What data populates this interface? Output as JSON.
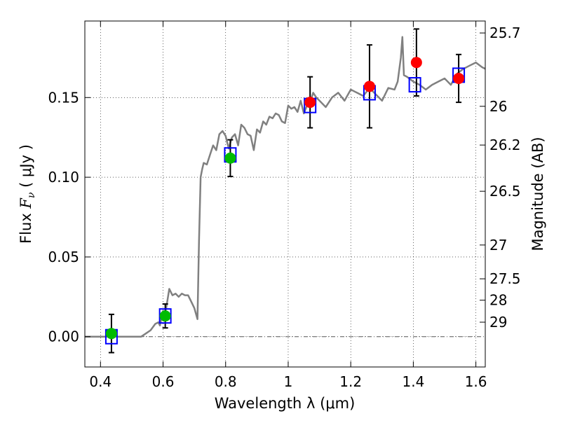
{
  "chart_data": {
    "type": "scatter",
    "xlabel": "Wavelength  λ (μm)",
    "ylabel_prefix": "Flux  ",
    "ylabel_symbol": "F",
    "ylabel_subscript": "ν",
    "ylabel_suffix": "  ( μJy )",
    "ylabel_right": "Magnitude (AB)",
    "xlim": [
      0.35,
      1.63
    ],
    "ylim": [
      -0.019,
      0.198
    ],
    "grid": true,
    "x_ticks": [
      {
        "value": 0.4,
        "label": "0.4"
      },
      {
        "value": 0.6,
        "label": "0.6"
      },
      {
        "value": 0.8,
        "label": "0.8"
      },
      {
        "value": 1.0,
        "label": "1"
      },
      {
        "value": 1.2,
        "label": "1.2"
      },
      {
        "value": 1.4,
        "label": "1.4"
      },
      {
        "value": 1.6,
        "label": "1.6"
      }
    ],
    "y_ticks": [
      {
        "value": 0.0,
        "label": "0.00"
      },
      {
        "value": 0.05,
        "label": "0.05"
      },
      {
        "value": 0.1,
        "label": "0.10"
      },
      {
        "value": 0.15,
        "label": "0.15"
      }
    ],
    "right_ticks": [
      {
        "flux": 0.1905,
        "label": "25.7"
      },
      {
        "flux": 0.1445,
        "label": "26"
      },
      {
        "flux": 0.1202,
        "label": "26.2"
      },
      {
        "flux": 0.0912,
        "label": "26.5"
      },
      {
        "flux": 0.0575,
        "label": "27"
      },
      {
        "flux": 0.0363,
        "label": "27.5"
      },
      {
        "flux": 0.0229,
        "label": "28"
      },
      {
        "flux": 0.0091,
        "label": "29"
      }
    ],
    "colors": {
      "model_line": "#808080",
      "model_box": "#0000ff",
      "optical": "#00bb00",
      "infrared": "#ff0000",
      "errorbar": "#000000",
      "zero_line": "#555555"
    },
    "model_spectrum": {
      "x": [
        0.35,
        0.53,
        0.545,
        0.56,
        0.575,
        0.585,
        0.59,
        0.6,
        0.605,
        0.61,
        0.62,
        0.63,
        0.64,
        0.65,
        0.66,
        0.67,
        0.68,
        0.69,
        0.7,
        0.71,
        0.715,
        0.72,
        0.725,
        0.73,
        0.74,
        0.75,
        0.76,
        0.77,
        0.78,
        0.79,
        0.8,
        0.81,
        0.82,
        0.83,
        0.84,
        0.85,
        0.86,
        0.87,
        0.88,
        0.89,
        0.9,
        0.91,
        0.92,
        0.93,
        0.94,
        0.95,
        0.96,
        0.97,
        0.98,
        0.99,
        1.0,
        1.01,
        1.02,
        1.03,
        1.04,
        1.05,
        1.06,
        1.07,
        1.08,
        1.09,
        1.1,
        1.12,
        1.14,
        1.16,
        1.18,
        1.2,
        1.22,
        1.24,
        1.26,
        1.28,
        1.3,
        1.32,
        1.34,
        1.35,
        1.36,
        1.365,
        1.37,
        1.38,
        1.4,
        1.42,
        1.44,
        1.46,
        1.48,
        1.5,
        1.52,
        1.54,
        1.56,
        1.58,
        1.6,
        1.62,
        1.63
      ],
      "y": [
        0.0,
        0.0,
        0.002,
        0.004,
        0.008,
        0.009,
        0.007,
        0.016,
        0.014,
        0.018,
        0.03,
        0.026,
        0.027,
        0.025,
        0.027,
        0.026,
        0.026,
        0.022,
        0.018,
        0.011,
        0.06,
        0.1,
        0.105,
        0.109,
        0.108,
        0.114,
        0.12,
        0.117,
        0.127,
        0.129,
        0.126,
        0.118,
        0.125,
        0.127,
        0.12,
        0.133,
        0.131,
        0.127,
        0.126,
        0.117,
        0.13,
        0.128,
        0.135,
        0.133,
        0.138,
        0.137,
        0.14,
        0.139,
        0.135,
        0.134,
        0.145,
        0.143,
        0.144,
        0.141,
        0.148,
        0.14,
        0.145,
        0.147,
        0.153,
        0.15,
        0.148,
        0.144,
        0.15,
        0.153,
        0.148,
        0.155,
        0.153,
        0.151,
        0.156,
        0.152,
        0.148,
        0.156,
        0.155,
        0.16,
        0.175,
        0.188,
        0.164,
        0.163,
        0.16,
        0.158,
        0.155,
        0.158,
        0.16,
        0.162,
        0.158,
        0.165,
        0.168,
        0.17,
        0.172,
        0.169,
        0.168
      ]
    },
    "model_points": [
      {
        "x": 0.435,
        "y": 0.0
      },
      {
        "x": 0.607,
        "y": 0.013
      },
      {
        "x": 0.815,
        "y": 0.114
      },
      {
        "x": 1.07,
        "y": 0.145
      },
      {
        "x": 1.26,
        "y": 0.153
      },
      {
        "x": 1.405,
        "y": 0.158
      },
      {
        "x": 1.545,
        "y": 0.164
      }
    ],
    "observed_points": [
      {
        "band": "optical",
        "x": 0.435,
        "y": 0.002,
        "yerr": 0.012
      },
      {
        "band": "optical",
        "x": 0.607,
        "y": 0.013,
        "yerr": 0.0075
      },
      {
        "band": "optical",
        "x": 0.815,
        "y": 0.112,
        "yerr": 0.0115
      },
      {
        "band": "infrared",
        "x": 1.07,
        "y": 0.147,
        "yerr": 0.016
      },
      {
        "band": "infrared",
        "x": 1.26,
        "y": 0.157,
        "yerr": 0.026
      },
      {
        "band": "infrared",
        "x": 1.41,
        "y": 0.172,
        "yerr": 0.021
      },
      {
        "band": "infrared",
        "x": 1.545,
        "y": 0.162,
        "yerr": 0.015
      }
    ]
  }
}
